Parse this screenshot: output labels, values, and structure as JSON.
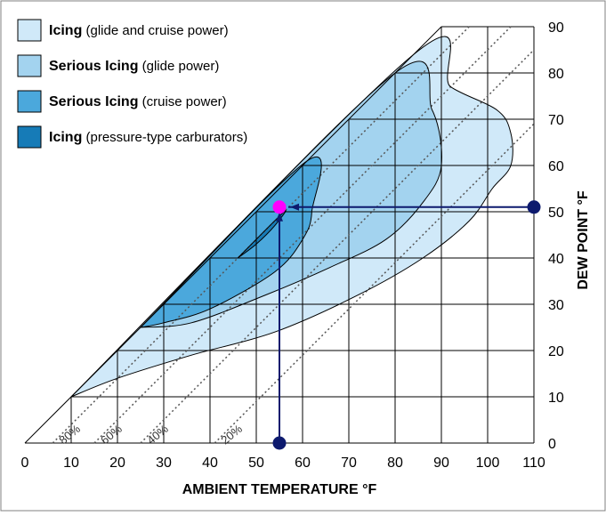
{
  "chart_data": {
    "type": "area",
    "xlabel": "AMBIENT TEMPERATURE °F",
    "ylabel": "DEW POINT °F",
    "xlim": [
      0,
      110
    ],
    "ylim": [
      0,
      90
    ],
    "x_ticks": [
      0,
      10,
      20,
      30,
      40,
      50,
      60,
      70,
      80,
      90,
      100,
      110
    ],
    "y_ticks": [
      0,
      10,
      20,
      30,
      40,
      50,
      60,
      70,
      80,
      90
    ],
    "grid": true,
    "legend_position": "top-left",
    "legend": [
      {
        "bold": "Icing",
        "rest": " (glide and cruise power)",
        "color": "#d0e9f9"
      },
      {
        "bold": "Serious Icing",
        "rest": " (glide power)",
        "color": "#a3d3ef"
      },
      {
        "bold": "Serious Icing",
        "rest": " (cruise power)",
        "color": "#4ba8dc"
      },
      {
        "bold": "Icing",
        "rest": " (pressure-type carburators)",
        "color": "#167bb7"
      }
    ],
    "humidity_lines": [
      {
        "label": "80%",
        "pct": 80
      },
      {
        "label": "60%",
        "pct": 60
      },
      {
        "label": "40%",
        "pct": 40
      },
      {
        "label": "20%",
        "pct": 20
      }
    ],
    "regions": [
      {
        "name": "Icing (glide and cruise power)",
        "color": "#d0e9f9",
        "points": [
          [
            10,
            10
          ],
          [
            84,
            84
          ],
          [
            92,
            77
          ],
          [
            102,
            72
          ],
          [
            105,
            67
          ],
          [
            105,
            60
          ],
          [
            101,
            55
          ],
          [
            96,
            48
          ],
          [
            86,
            40
          ],
          [
            72,
            32
          ],
          [
            54,
            24
          ],
          [
            36,
            19
          ],
          [
            20,
            14
          ],
          [
            10,
            10
          ]
        ]
      },
      {
        "name": "Serious Icing (glide power)",
        "color": "#a3d3ef",
        "points": [
          [
            25,
            25
          ],
          [
            80,
            80
          ],
          [
            88,
            72
          ],
          [
            90,
            60
          ],
          [
            86,
            52
          ],
          [
            78,
            44
          ],
          [
            66,
            38
          ],
          [
            52,
            32
          ],
          [
            36,
            26
          ],
          [
            25,
            25
          ]
        ]
      },
      {
        "name": "Serious Icing (cruise power)",
        "color": "#4ba8dc",
        "points": [
          [
            25,
            25
          ],
          [
            61,
            61
          ],
          [
            62,
            50
          ],
          [
            60,
            44
          ],
          [
            54,
            37
          ],
          [
            40,
            29
          ],
          [
            30,
            26
          ],
          [
            25,
            25
          ]
        ]
      },
      {
        "name": "Icing (pressure-type carburators)",
        "color": "#167bb7",
        "points": [
          [
            46,
            40
          ],
          [
            56,
            50
          ],
          [
            54,
            47
          ],
          [
            50,
            43
          ],
          [
            46,
            40
          ]
        ]
      }
    ],
    "example_path": {
      "start": [
        55,
        0
      ],
      "point": [
        55,
        51
      ],
      "end": [
        110,
        51
      ],
      "point_color": "#ff00ff",
      "line_color": "#0d1a6e"
    }
  }
}
